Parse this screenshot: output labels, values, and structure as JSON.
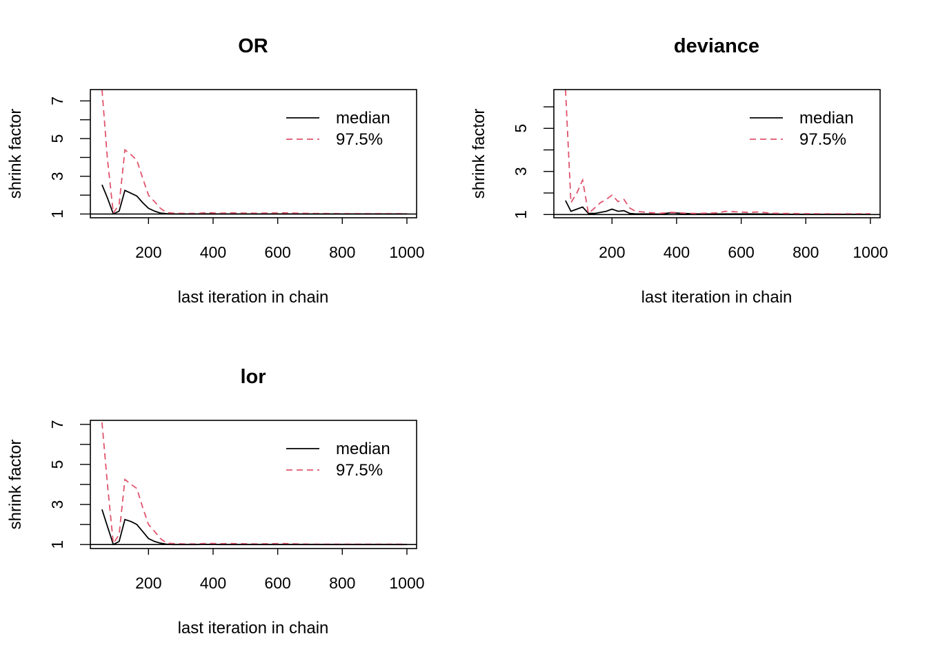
{
  "chart_data": [
    {
      "type": "line",
      "title": "OR",
      "xlabel": "last iteration in chain",
      "ylabel": "shrink factor",
      "xlim": [
        20,
        1030
      ],
      "ylim": [
        0.8,
        7.6
      ],
      "xticks": [
        "200",
        "400",
        "600",
        "800",
        "1000"
      ],
      "yticks": [
        "1",
        "3",
        "5",
        "7"
      ],
      "yminor": [
        2,
        4,
        6
      ],
      "reference_line": 1,
      "legend": {
        "position": "top-right",
        "entries": [
          "median",
          "97.5%"
        ]
      },
      "series": [
        {
          "name": "median",
          "color": "#000000",
          "dash": "solid",
          "x": [
            56,
            73,
            91,
            109,
            127,
            146,
            164,
            182,
            200,
            219,
            237,
            255,
            273,
            310,
            346,
            383,
            420,
            456,
            530,
            620,
            700,
            800,
            900,
            1000
          ],
          "y": [
            2.55,
            1.85,
            1.0,
            1.15,
            2.25,
            2.1,
            1.95,
            1.6,
            1.3,
            1.15,
            1.05,
            1.02,
            1.0,
            1.0,
            1.0,
            1.01,
            1.0,
            1.0,
            1.0,
            1.0,
            1.0,
            1.0,
            1.0,
            1.0
          ]
        },
        {
          "name": "97.5%",
          "color": "#DF536B",
          "dash": "dashed",
          "x": [
            56,
            73,
            91,
            109,
            127,
            146,
            164,
            182,
            200,
            219,
            237,
            255,
            273,
            310,
            346,
            383,
            420,
            456,
            530,
            620,
            700,
            800,
            900,
            1000
          ],
          "y": [
            7.6,
            3.9,
            1.05,
            1.5,
            4.4,
            4.15,
            3.85,
            2.9,
            2.0,
            1.65,
            1.3,
            1.08,
            1.05,
            1.03,
            1.03,
            1.07,
            1.04,
            1.06,
            1.04,
            1.06,
            1.03,
            1.02,
            1.02,
            1.02
          ]
        }
      ]
    },
    {
      "type": "line",
      "title": "deviance",
      "xlabel": "last iteration in chain",
      "ylabel": "shrink factor",
      "xlim": [
        20,
        1030
      ],
      "ylim": [
        0.85,
        6.8
      ],
      "xticks": [
        "200",
        "400",
        "600",
        "800",
        "1000"
      ],
      "yticks": [
        "1",
        "3",
        "5"
      ],
      "yminor": [
        2,
        4,
        6
      ],
      "reference_line": 1,
      "legend": {
        "position": "top-right",
        "entries": [
          "median",
          "97.5%"
        ]
      },
      "series": [
        {
          "name": "median",
          "color": "#000000",
          "dash": "solid",
          "x": [
            56,
            73,
            91,
            109,
            127,
            146,
            164,
            182,
            200,
            219,
            237,
            255,
            273,
            310,
            346,
            383,
            420,
            456,
            530,
            620,
            700,
            800,
            900,
            1000
          ],
          "y": [
            1.65,
            1.15,
            1.25,
            1.35,
            1.05,
            1.05,
            1.1,
            1.15,
            1.25,
            1.15,
            1.18,
            1.05,
            1.03,
            1.03,
            1.02,
            1.08,
            1.05,
            1.03,
            1.03,
            1.03,
            1.02,
            1.01,
            1.01,
            1.01
          ]
        },
        {
          "name": "97.5%",
          "color": "#DF536B",
          "dash": "dashed",
          "x": [
            56,
            73,
            91,
            109,
            127,
            146,
            164,
            182,
            200,
            219,
            237,
            255,
            273,
            310,
            346,
            383,
            420,
            456,
            530,
            550,
            620,
            650,
            700,
            800,
            900,
            1000
          ],
          "y": [
            6.8,
            1.55,
            2.0,
            2.6,
            1.05,
            1.3,
            1.55,
            1.7,
            1.9,
            1.6,
            1.7,
            1.3,
            1.15,
            1.1,
            1.05,
            1.1,
            1.07,
            1.05,
            1.08,
            1.15,
            1.1,
            1.12,
            1.06,
            1.04,
            1.03,
            1.04
          ]
        }
      ]
    },
    {
      "type": "line",
      "title": "lor",
      "xlabel": "last iteration in chain",
      "ylabel": "shrink factor",
      "xlim": [
        20,
        1030
      ],
      "ylim": [
        0.8,
        7.2
      ],
      "xticks": [
        "200",
        "400",
        "600",
        "800",
        "1000"
      ],
      "yticks": [
        "1",
        "3",
        "5",
        "7"
      ],
      "yminor": [
        2,
        4,
        6
      ],
      "reference_line": 1,
      "legend": {
        "position": "top-right",
        "entries": [
          "median",
          "97.5%"
        ]
      },
      "series": [
        {
          "name": "median",
          "color": "#000000",
          "dash": "solid",
          "x": [
            56,
            73,
            91,
            109,
            127,
            146,
            164,
            182,
            200,
            219,
            237,
            255,
            273,
            310,
            346,
            383,
            420,
            456,
            530,
            620,
            700,
            800,
            900,
            1000
          ],
          "y": [
            2.75,
            1.9,
            1.0,
            1.15,
            2.25,
            2.15,
            2.0,
            1.65,
            1.3,
            1.15,
            1.07,
            1.02,
            1.0,
            1.0,
            1.0,
            1.01,
            1.0,
            1.0,
            1.0,
            1.0,
            1.0,
            1.0,
            1.0,
            1.0
          ]
        },
        {
          "name": "97.5%",
          "color": "#DF536B",
          "dash": "dashed",
          "x": [
            56,
            73,
            91,
            109,
            127,
            146,
            164,
            182,
            200,
            219,
            237,
            255,
            273,
            310,
            346,
            383,
            420,
            456,
            530,
            620,
            700,
            800,
            900,
            1000
          ],
          "y": [
            7.1,
            4.0,
            1.05,
            1.5,
            4.25,
            4.0,
            3.8,
            2.85,
            2.0,
            1.65,
            1.3,
            1.08,
            1.05,
            1.03,
            1.03,
            1.06,
            1.04,
            1.05,
            1.03,
            1.05,
            1.02,
            1.02,
            1.02,
            1.02
          ]
        }
      ]
    }
  ]
}
